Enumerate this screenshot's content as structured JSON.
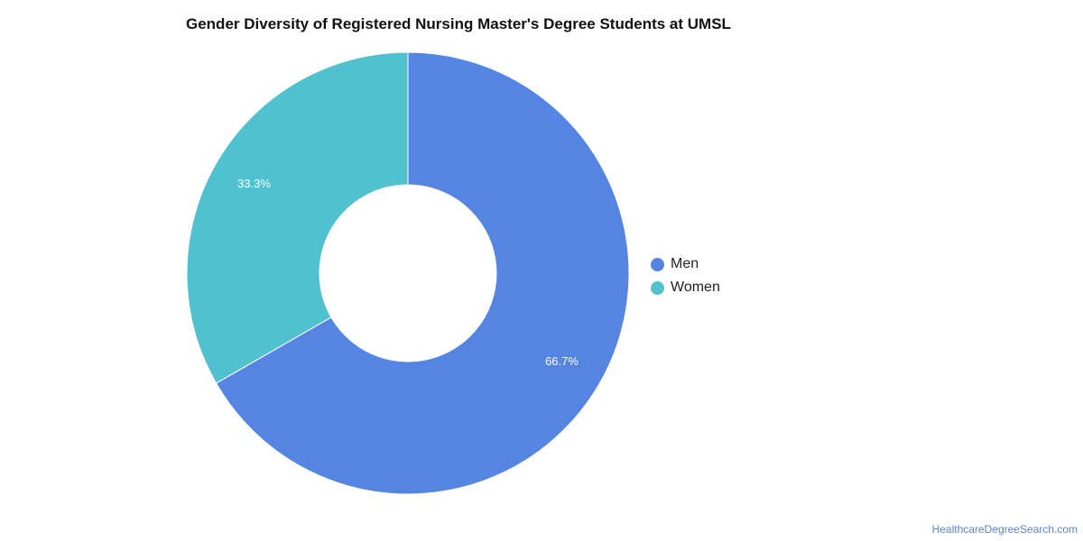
{
  "chart_data": {
    "type": "pie",
    "variant": "donut",
    "title": "Gender Diversity of Registered Nursing Master's Degree Students at UMSL",
    "categories": [
      "Men",
      "Women"
    ],
    "values": [
      66.7,
      33.3
    ],
    "data_labels": [
      "66.7%",
      "33.3%"
    ],
    "colors": [
      "#5585e2",
      "#52c1cf"
    ],
    "legend": {
      "placement": "right",
      "entries": [
        "Men",
        "Women"
      ]
    }
  },
  "footer": {
    "source": "HealthcareDegreeSearch.com"
  }
}
